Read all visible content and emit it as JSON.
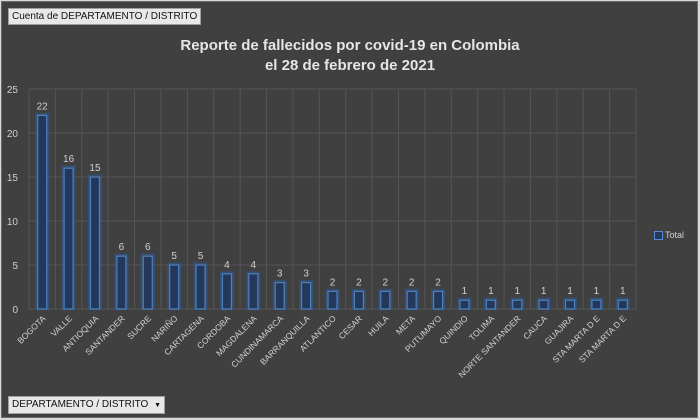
{
  "field_buttons": {
    "value_field": "Cuenta de DEPARTAMENTO / DISTRITO",
    "axis_field": "DEPARTAMENTO / DISTRITO",
    "axis_field_arrow": "▼"
  },
  "colors": {
    "background": "#404040",
    "bar_fill": "#23385a",
    "bar_border": "#4f81bd",
    "text": "#d0d0d0",
    "grid": "#555555"
  },
  "chart_data": {
    "type": "bar",
    "title": [
      "Reporte de fallecidos por covid-19 en Colombia",
      "el 28 de febrero de 2021"
    ],
    "categories": [
      "BOGOTA",
      "VALLE",
      "ANTIOQUIA",
      "SANTANDER",
      "SUCRE",
      "NARIÑO",
      "CARTAGENA",
      "CORDOBA",
      "MAGDALENA",
      "CUNDINAMARCA",
      "BARRANQUILLA",
      "ATLANTICO",
      "CESAR",
      "HUILA",
      "META",
      "PUTUMAYO",
      "QUINDIO",
      "TOLIMA",
      "NORTE SANTANDER",
      "CAUCA",
      "GUAJIRA",
      "STA MARTA D E",
      "STA MARTA D E"
    ],
    "series": [
      {
        "name": "Total",
        "values": [
          22,
          16,
          15,
          6,
          6,
          5,
          5,
          4,
          4,
          3,
          3,
          2,
          2,
          2,
          2,
          2,
          1,
          1,
          1,
          1,
          1,
          1,
          1
        ]
      }
    ],
    "ylim": [
      0,
      25
    ],
    "yticks": [
      "0",
      "5",
      "10",
      "15",
      "20",
      "25"
    ],
    "grid": true,
    "legend": "right",
    "data_labels": true
  }
}
